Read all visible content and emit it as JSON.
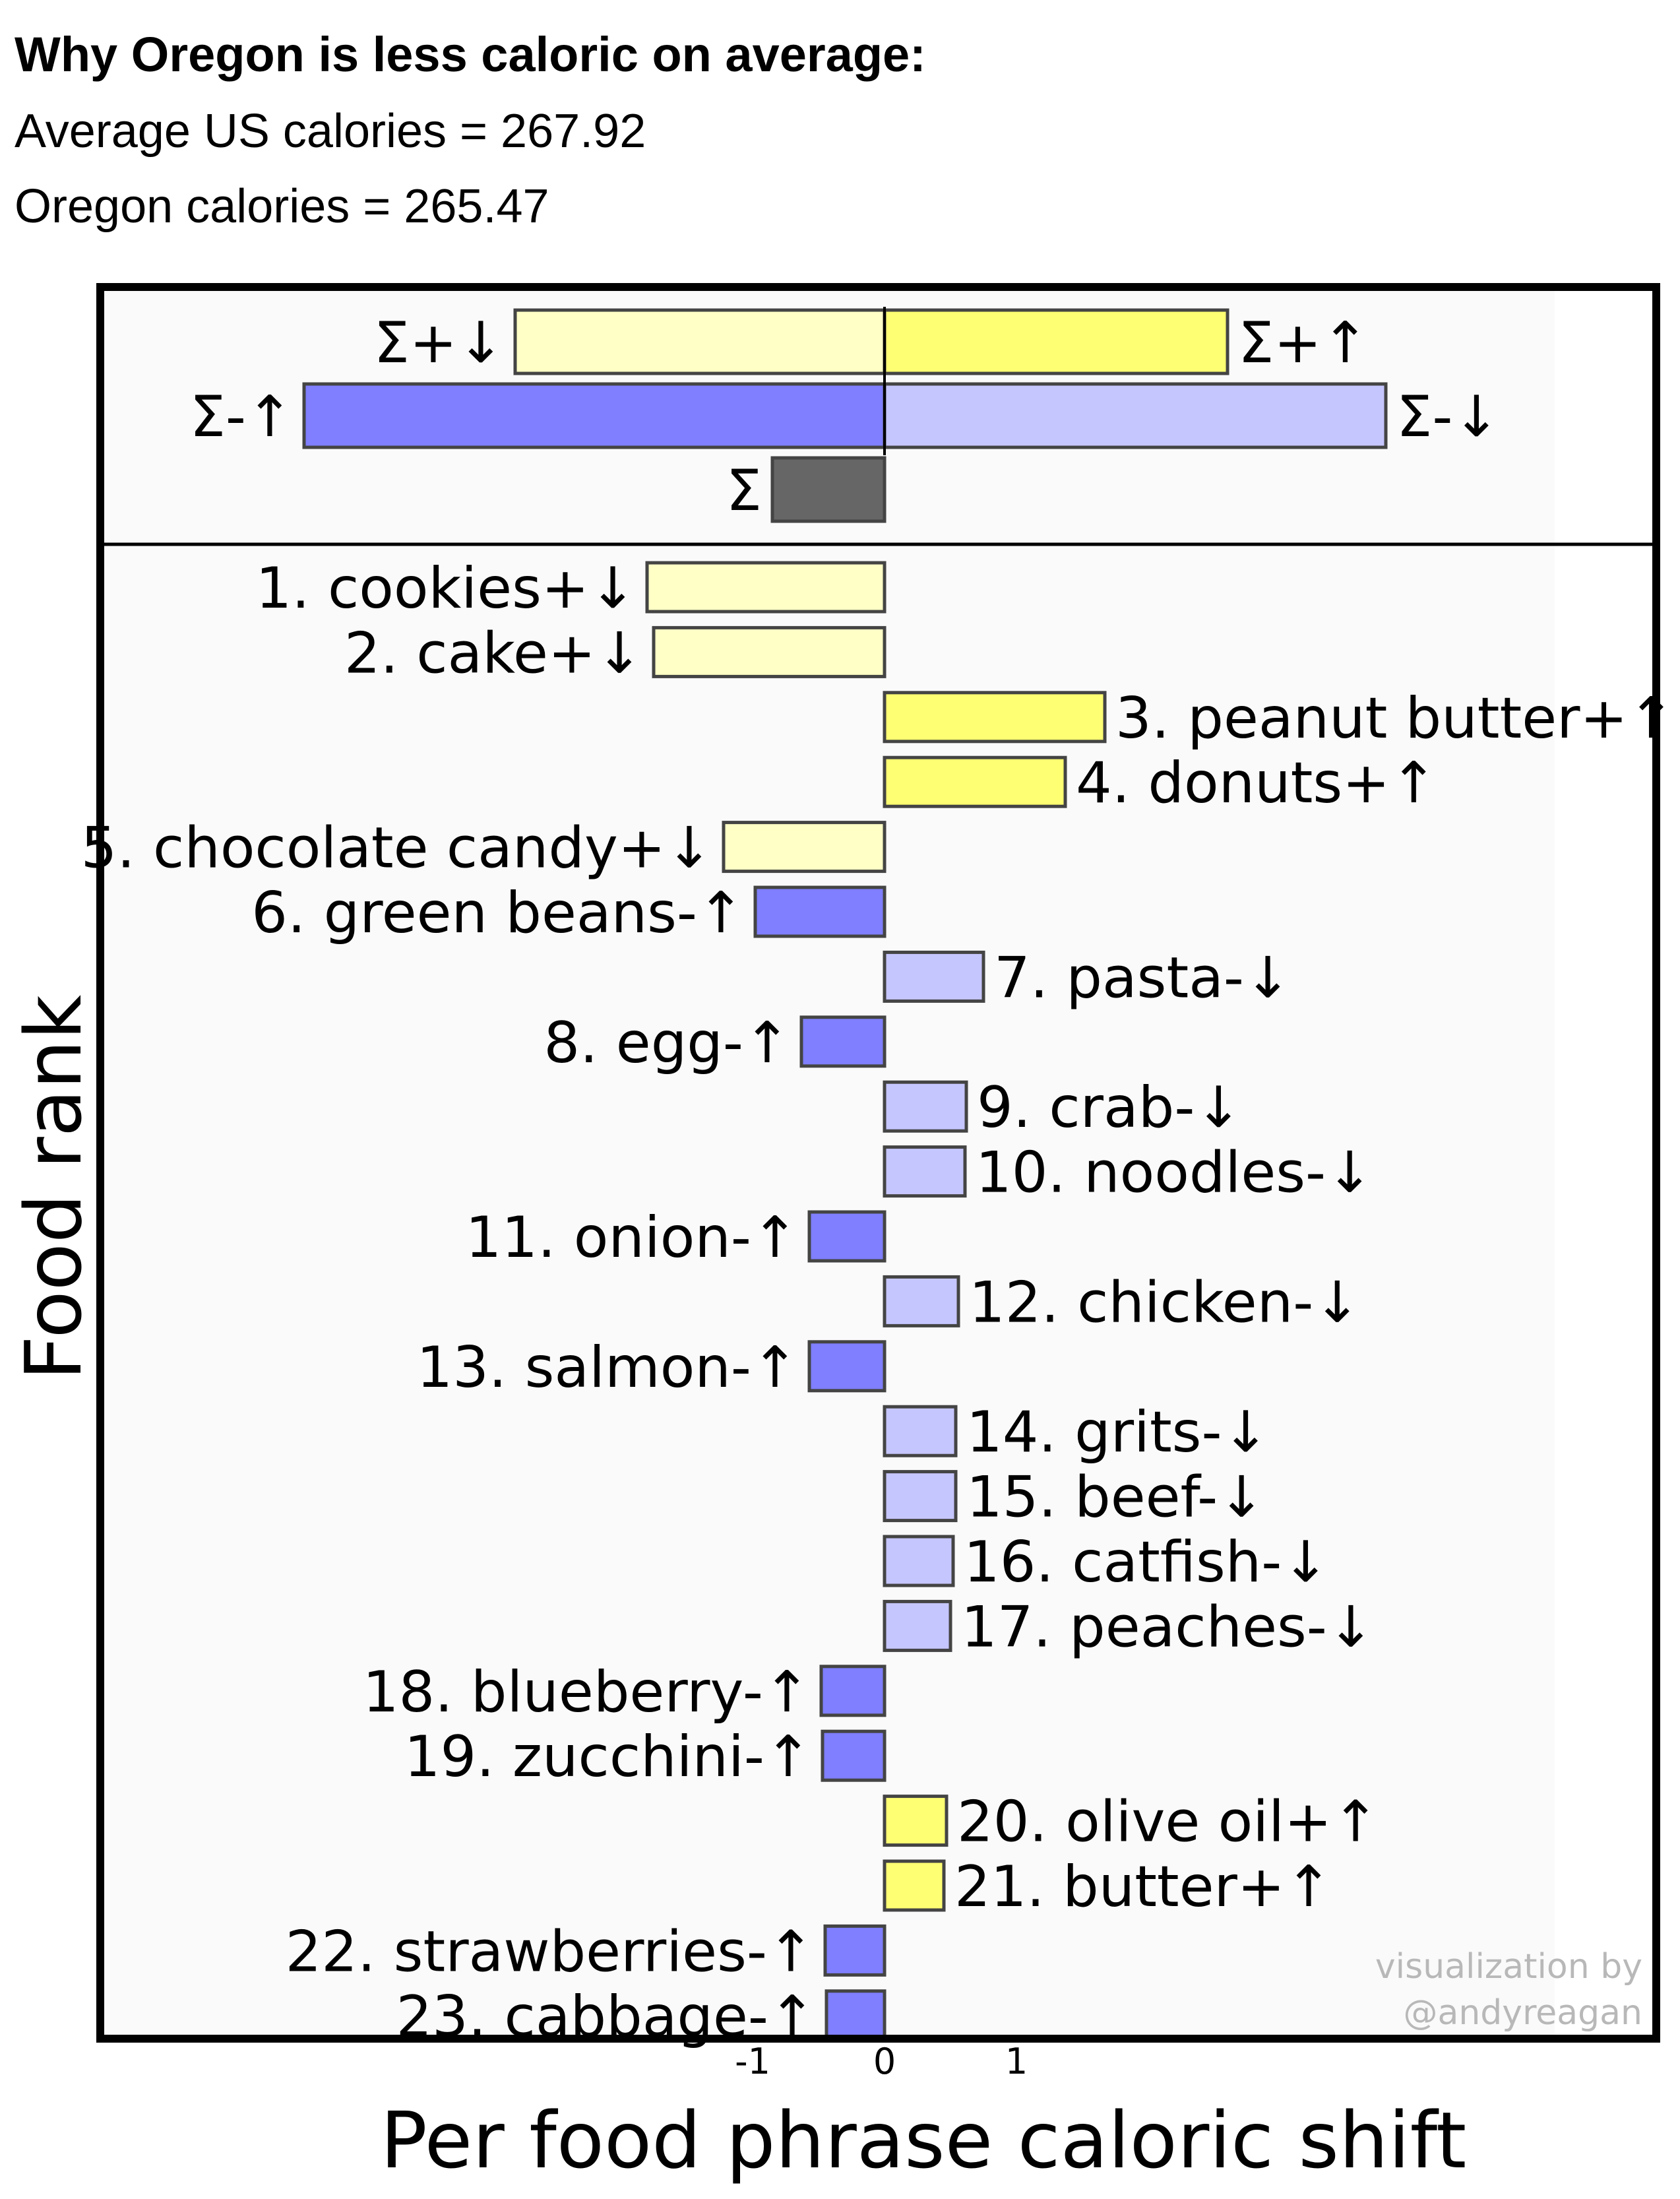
{
  "title": "Why Oregon is less caloric on average:",
  "subtitle_lines": [
    "Average US calories = 267.92",
    "Oregon calories = 265.47"
  ],
  "credit": [
    "visualization by",
    "@andyreagan"
  ],
  "colors": {
    "pos_down": "#ffffc6",
    "pos_up": "#ffff73",
    "neg_up": "#7f7fff",
    "neg_down": "#c6c6ff",
    "sum": "#666666",
    "panel_bg": "#fafafa",
    "bar_edge": "#444444"
  },
  "chart_data": [
    {
      "type": "bar",
      "orientation": "horizontal",
      "title": "",
      "categories": [
        "Σ+↓",
        "Σ+↑",
        "Σ-↑",
        "Σ-↓",
        "Σ"
      ],
      "values": [
        -2.8,
        2.6,
        -4.4,
        3.8,
        -0.85
      ],
      "category_color": [
        "pos_down",
        "pos_up",
        "neg_up",
        "neg_down",
        "sum"
      ]
    },
    {
      "type": "bar",
      "orientation": "horizontal",
      "xlabel": "Per food phrase caloric shift",
      "ylabel": "Food rank",
      "xticks": [
        -1,
        0,
        1
      ],
      "xlim": [
        -6.5,
        5.5
      ],
      "grid": false,
      "categories": [
        "1. cookies+↓",
        "2. cake+↓",
        "3. peanut butter+↑",
        "4. donuts+↑",
        "5. chocolate candy+↓",
        "6. green beans-↑",
        "7. pasta-↓",
        "8. egg-↑",
        "9. crab-↓",
        "10. noodles-↓",
        "11. onion-↑",
        "12. chicken-↓",
        "13. salmon-↑",
        "14. grits-↓",
        "15. beef-↓",
        "16. catfish-↓",
        "17. peaches-↓",
        "18. blueberry-↑",
        "19. zucchini-↑",
        "20. olive oil+↑",
        "21. butter+↑",
        "22. strawberries-↑",
        "23. cabbage-↑"
      ],
      "values": [
        -1.8,
        -1.75,
        1.67,
        1.37,
        -1.22,
        -0.98,
        0.75,
        -0.63,
        0.62,
        0.61,
        -0.57,
        0.56,
        -0.57,
        0.54,
        0.54,
        0.52,
        0.5,
        -0.48,
        -0.47,
        0.47,
        0.45,
        -0.45,
        -0.44
      ],
      "category_color": [
        "pos_down",
        "pos_down",
        "pos_up",
        "pos_up",
        "pos_down",
        "neg_up",
        "neg_down",
        "neg_up",
        "neg_down",
        "neg_down",
        "neg_up",
        "neg_down",
        "neg_up",
        "neg_down",
        "neg_down",
        "neg_down",
        "neg_down",
        "neg_up",
        "neg_up",
        "pos_up",
        "pos_up",
        "neg_up",
        "neg_up"
      ]
    }
  ]
}
